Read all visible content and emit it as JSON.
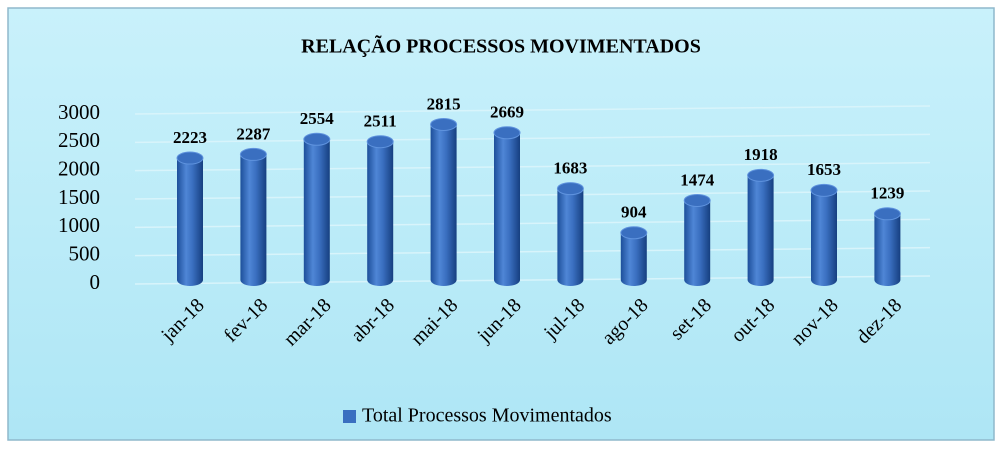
{
  "chart_data": {
    "type": "bar",
    "title": "RELAÇÃO PROCESSOS MOVIMENTADOS",
    "categories": [
      "jan-18",
      "fev-18",
      "mar-18",
      "abr-18",
      "mai-18",
      "jun-18",
      "jul-18",
      "ago-18",
      "set-18",
      "out-18",
      "nov-18",
      "dez-18"
    ],
    "series": [
      {
        "name": "Total Processos Movimentados",
        "color": "#3a6fc0",
        "values": [
          2223,
          2287,
          2554,
          2511,
          2815,
          2669,
          1683,
          904,
          1474,
          1918,
          1653,
          1239
        ]
      }
    ],
    "ylim": [
      0,
      3000
    ],
    "yticks": [
      0,
      500,
      1000,
      1500,
      2000,
      2500,
      3000
    ],
    "grid": true,
    "legend": "bottom"
  }
}
